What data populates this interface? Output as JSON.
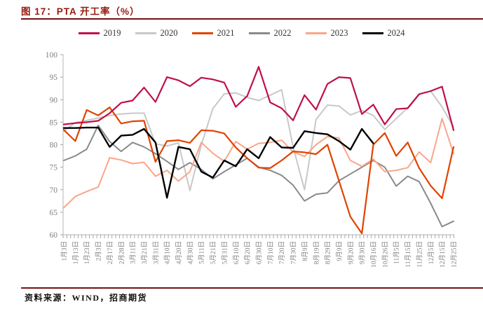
{
  "figure": {
    "title": "图 17：PTA 开工率（%）",
    "source": "资料来源：WIND，招商期货"
  },
  "colors": {
    "title_text": "#951B10",
    "divider_rule": "#701313",
    "axis_line": "#C0C0C0",
    "tick_mark": "#A6A6A6",
    "tick_label": "#7F7F7F",
    "legend_text": "#333333"
  },
  "chart_data": {
    "type": "line",
    "title": "PTA 开工率（%）",
    "xlabel": "",
    "ylabel": "",
    "ylim": [
      60,
      100
    ],
    "yticks": [
      60,
      65,
      70,
      75,
      80,
      85,
      90,
      95,
      100
    ],
    "grid": false,
    "legend_position": "top",
    "categories": [
      "1月3日",
      "1月13日",
      "1月23日",
      "2月3日",
      "2月17日",
      "2月28日",
      "3月11日",
      "3月21日",
      "3月31日",
      "4月10日",
      "4月20日",
      "4月30日",
      "5月11日",
      "5月21日",
      "5月31日",
      "6月10日",
      "6月20日",
      "6月30日",
      "7月10日",
      "7月20日",
      "7月30日",
      "8月9日",
      "8月19日",
      "8月29日",
      "9月9日",
      "9月20日",
      "9月30日",
      "10月16日",
      "10月26日",
      "11月5日",
      "11月15日",
      "11月25日",
      "12月5日",
      "12月15日",
      "12月25日"
    ],
    "series": [
      {
        "name": "2019",
        "color": "#C01048",
        "width": 2.2,
        "values": [
          84.5,
          84.8,
          85,
          85.3,
          87,
          89.3,
          89.8,
          92.7,
          89.5,
          95,
          94.3,
          93,
          94.9,
          94.5,
          93.8,
          88.4,
          90.8,
          97.3,
          89.4,
          88.1,
          85.4,
          91,
          87.8,
          93.5,
          95,
          94.8,
          86.8,
          88.9,
          84.5,
          87.9,
          88.1,
          91.2,
          91.9,
          92.9,
          83.2
        ]
      },
      {
        "name": "2020",
        "color": "#C8C8C8",
        "width": 2,
        "values": [
          83,
          84.9,
          85.4,
          85.9,
          86.5,
          86.8,
          87,
          87,
          80.2,
          79.7,
          80.4,
          69.8,
          80,
          88,
          91.3,
          91.5,
          90.5,
          89.8,
          91,
          92.2,
          79.5,
          70,
          85.6,
          88.8,
          88.6,
          86.6,
          87.6,
          86.5,
          83.4,
          85.8,
          88.2,
          91.3,
          91.9,
          88.4,
          83.9
        ]
      },
      {
        "name": "2021",
        "color": "#E04300",
        "width": 2.2,
        "values": [
          83.3,
          80.8,
          87.7,
          86.5,
          88.3,
          84.7,
          85.2,
          85.3,
          76.2,
          80.8,
          81,
          80.4,
          83.2,
          83.1,
          82.5,
          79.4,
          77,
          74.9,
          74.8,
          76.5,
          78.5,
          78.3,
          77.9,
          80,
          72,
          64,
          60.3,
          80,
          82.6,
          77.5,
          80.5,
          74.8,
          70.9,
          68.1,
          79.5
        ]
      },
      {
        "name": "2022",
        "color": "#8A8A8A",
        "width": 2,
        "values": [
          76.5,
          77.5,
          79,
          84.3,
          80.7,
          78.5,
          80.5,
          79.5,
          78,
          76.3,
          74.5,
          76,
          74.5,
          72.4,
          74,
          75.5,
          77,
          75,
          74.3,
          73.2,
          71,
          67.5,
          69,
          69.3,
          72,
          73.5,
          75,
          76.5,
          75,
          70.8,
          73,
          71.8,
          67,
          61.8,
          63
        ]
      },
      {
        "name": "2023",
        "color": "#F9A689",
        "width": 2,
        "values": [
          66,
          68.5,
          69.6,
          70.6,
          77.1,
          76.6,
          75.8,
          76.1,
          73,
          74.3,
          71.9,
          74,
          80.5,
          78.1,
          76.3,
          80.7,
          79,
          80.3,
          80.5,
          81,
          78.4,
          77.4,
          80,
          81.8,
          81.5,
          76.5,
          75.2,
          76.8,
          74,
          74.3,
          74.9,
          78.4,
          76,
          85.8,
          78
        ]
      },
      {
        "name": "2024",
        "color": "#000000",
        "width": 2.4,
        "values": [
          83.7,
          83.7,
          83.8,
          83.8,
          79.5,
          82,
          82.2,
          83.5,
          80.5,
          68.2,
          79.5,
          79,
          74,
          72.7,
          76.5,
          75.2,
          79,
          77,
          81.7,
          79.4,
          79.3,
          83,
          82.6,
          82.3,
          80.8,
          78.9,
          83.5,
          80.3,
          null,
          null,
          null,
          null,
          null,
          null,
          null
        ]
      }
    ]
  }
}
